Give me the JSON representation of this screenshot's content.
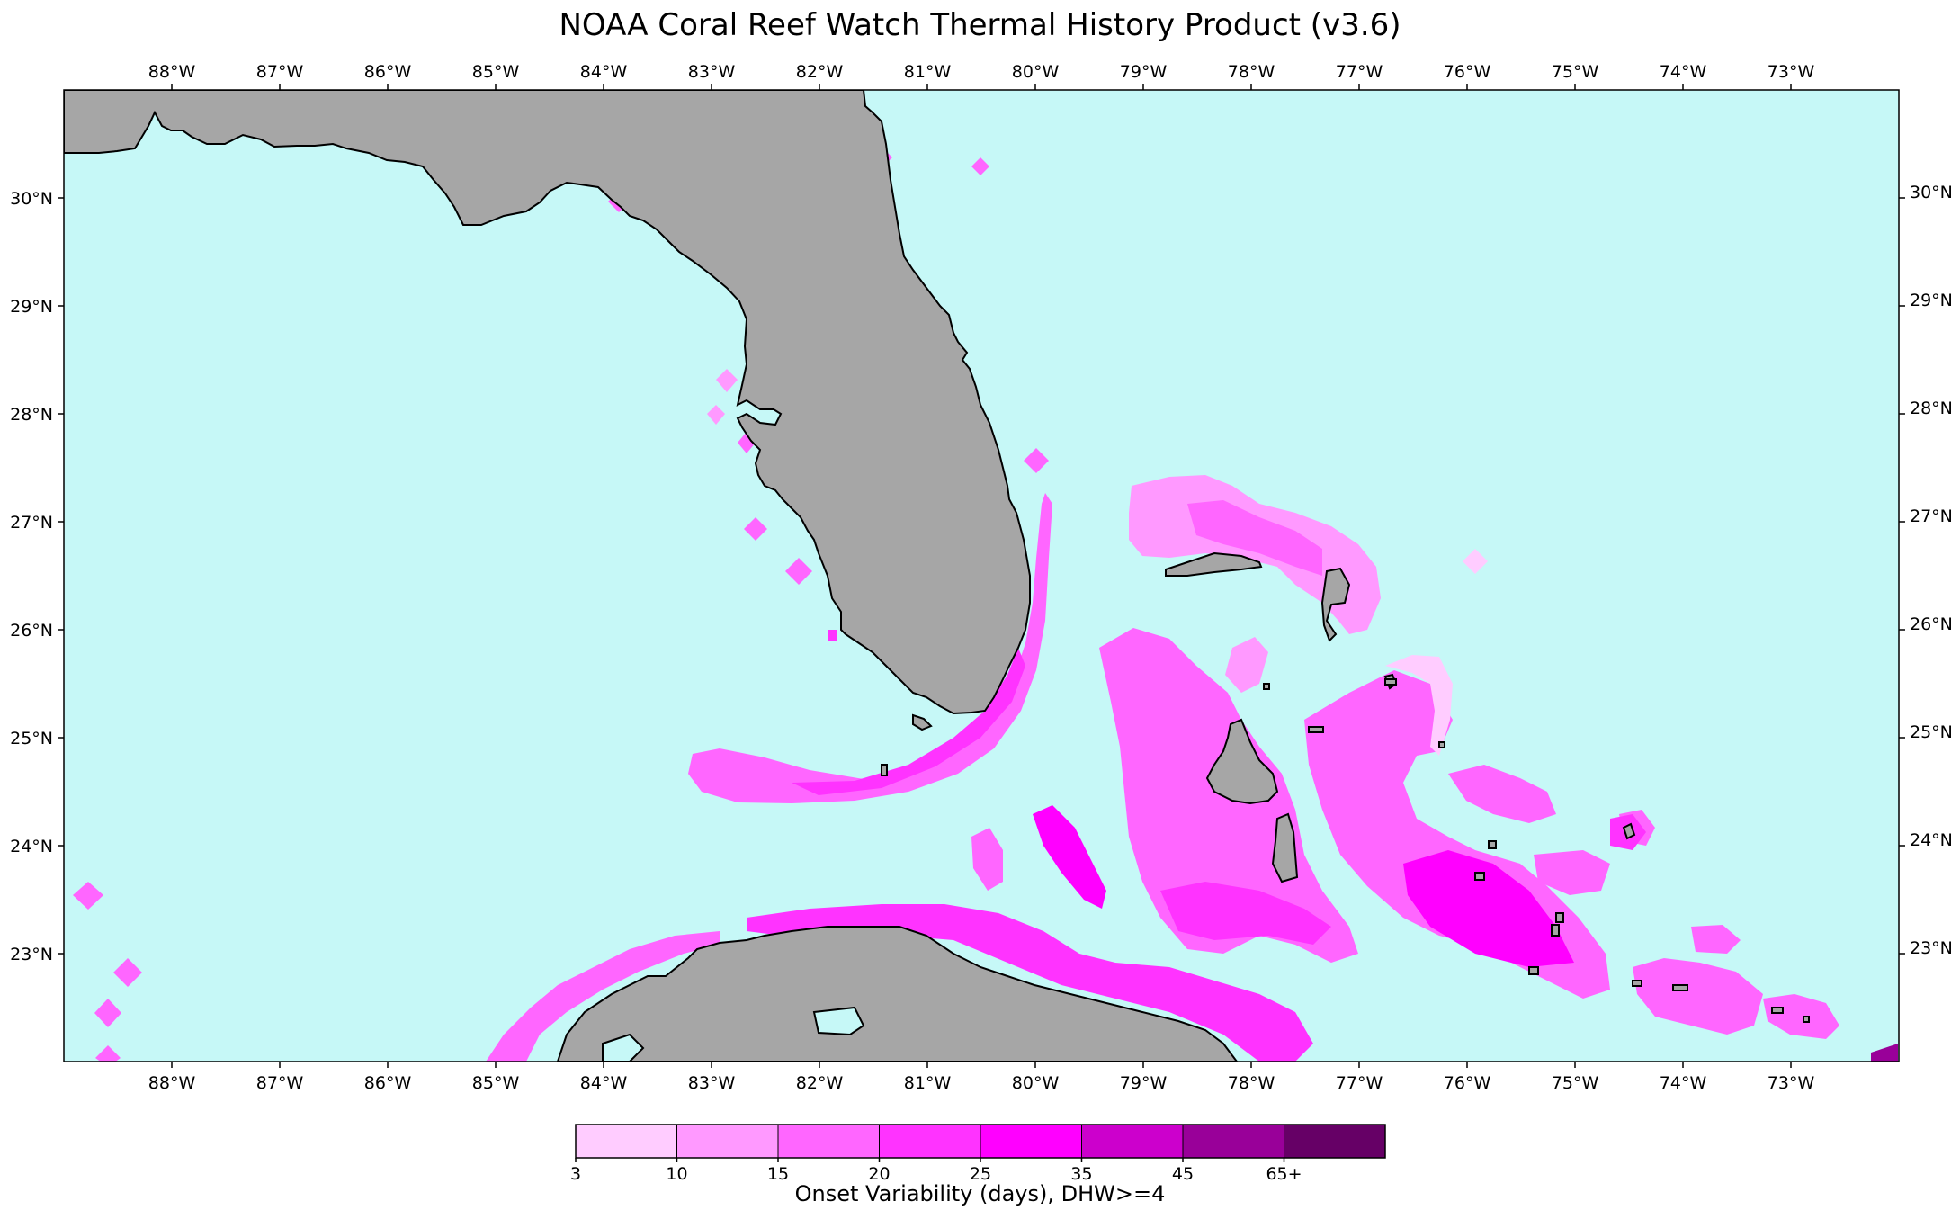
{
  "title": "NOAA Coral Reef Watch Thermal History Product (v3.6)",
  "map": {
    "lon_range": [
      -89,
      -72
    ],
    "lat_range": [
      22,
      31
    ],
    "ocean_color": "#c6f8f7",
    "land_color": "#a6a6a6",
    "lon_ticks": [
      {
        "value": -88,
        "label": "88°W"
      },
      {
        "value": -87,
        "label": "87°W"
      },
      {
        "value": -86,
        "label": "86°W"
      },
      {
        "value": -85,
        "label": "85°W"
      },
      {
        "value": -84,
        "label": "84°W"
      },
      {
        "value": -83,
        "label": "83°W"
      },
      {
        "value": -82,
        "label": "82°W"
      },
      {
        "value": -81,
        "label": "81°W"
      },
      {
        "value": -80,
        "label": "80°W"
      },
      {
        "value": -79,
        "label": "79°W"
      },
      {
        "value": -78,
        "label": "78°W"
      },
      {
        "value": -77,
        "label": "77°W"
      },
      {
        "value": -76,
        "label": "76°W"
      },
      {
        "value": -75,
        "label": "75°W"
      },
      {
        "value": -74,
        "label": "74°W"
      },
      {
        "value": -73,
        "label": "73°W"
      }
    ],
    "lat_ticks": [
      {
        "value": 30,
        "label": "30°N"
      },
      {
        "value": 29,
        "label": "29°N"
      },
      {
        "value": 28,
        "label": "28°N"
      },
      {
        "value": 27,
        "label": "27°N"
      },
      {
        "value": 26,
        "label": "26°N"
      },
      {
        "value": 25,
        "label": "25°N"
      },
      {
        "value": 24,
        "label": "24°N"
      },
      {
        "value": 23,
        "label": "23°N"
      }
    ]
  },
  "colorbar": {
    "title": "Onset Variability (days), DHW>=4",
    "bins": [
      {
        "color": "#ffccff"
      },
      {
        "color": "#ff99ff"
      },
      {
        "color": "#ff66ff"
      },
      {
        "color": "#ff33ff"
      },
      {
        "color": "#ff00ff"
      },
      {
        "color": "#cc00cc"
      },
      {
        "color": "#990099"
      },
      {
        "color": "#660066"
      }
    ],
    "tick_labels": [
      "3",
      "10",
      "15",
      "20",
      "25",
      "35",
      "45",
      "65+"
    ]
  }
}
